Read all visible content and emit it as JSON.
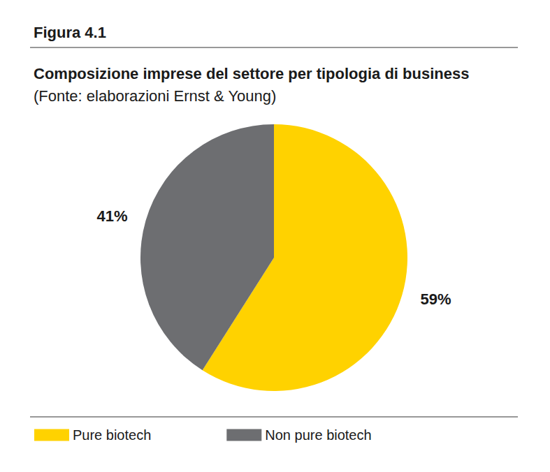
{
  "chart_data": {
    "type": "pie",
    "title": "Figura 4.1",
    "subtitle": "Composizione imprese del settore per tipologia di business",
    "annotations": [
      "(Fonte: elaborazioni Ernst & Young)"
    ],
    "categories": [
      "Pure biotech",
      "Non pure biotech"
    ],
    "values": [
      59,
      41
    ],
    "value_labels": [
      "59%",
      "41%"
    ],
    "colors": [
      "#ffd200",
      "#6d6e71"
    ],
    "data_labels": true,
    "legend": "bottom"
  }
}
